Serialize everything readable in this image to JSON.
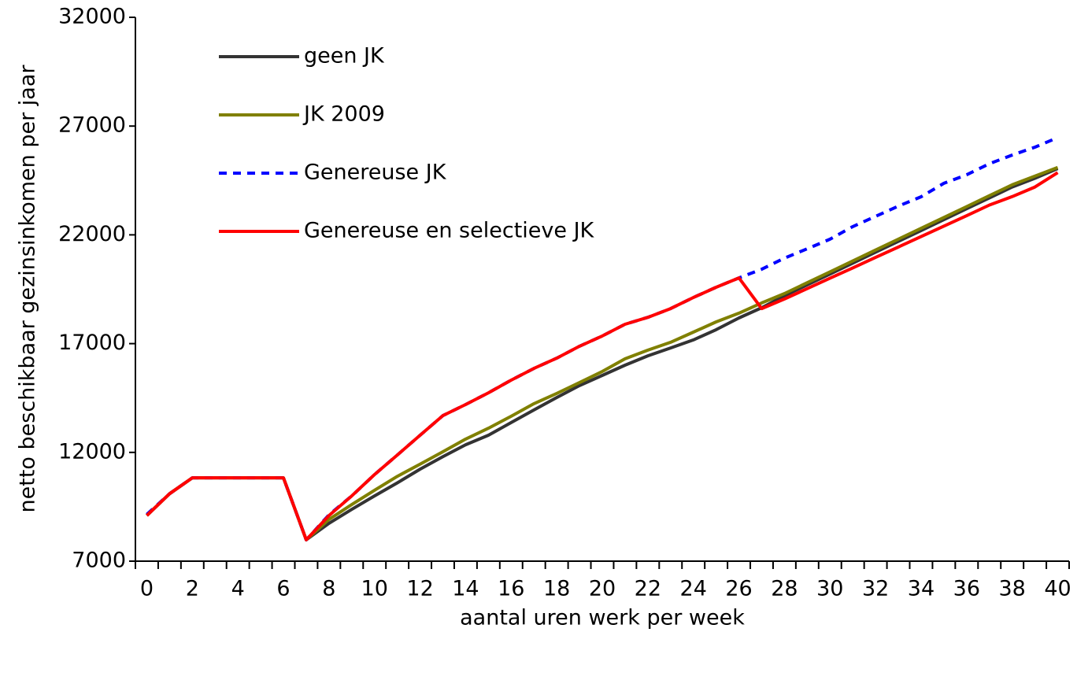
{
  "chart_data": {
    "type": "line",
    "x_label": "aantal uren werk per week",
    "y_label": "netto beschikbaar gezinsinkomen per jaar",
    "categories": [
      "0",
      null,
      "2",
      null,
      "4",
      null,
      "6",
      null,
      "8",
      null,
      "10",
      null,
      "12",
      null,
      "14",
      null,
      "16",
      null,
      "18",
      null,
      "20",
      null,
      "22",
      null,
      "24",
      null,
      "26",
      null,
      "28",
      null,
      "30",
      null,
      "32",
      null,
      "34",
      null,
      "36",
      null,
      "38",
      null,
      "40"
    ],
    "ylim": [
      7000,
      32000
    ],
    "yticks": [
      7000,
      12000,
      17000,
      22000,
      27000,
      32000
    ],
    "legend": "upper left",
    "series": [
      {
        "name": "geen JK",
        "color": "#333333",
        "dash": false,
        "values": [
          9100,
          10100,
          10830,
          10830,
          10830,
          10830,
          10830,
          7980,
          8740,
          9380,
          10000,
          10600,
          11230,
          11800,
          12350,
          12790,
          13370,
          13950,
          14520,
          15070,
          15540,
          16010,
          16440,
          16800,
          17170,
          17640,
          18180,
          18650,
          19200,
          19700,
          20200,
          20700,
          21200,
          21700,
          22200,
          22700,
          23200,
          23700,
          24200,
          24600,
          25050
        ]
      },
      {
        "name": "JK 2009",
        "color": "#808000",
        "dash": false,
        "values": [
          9100,
          10100,
          10830,
          10830,
          10830,
          10830,
          10830,
          7980,
          8920,
          9600,
          10260,
          10900,
          11460,
          12030,
          12610,
          13110,
          13660,
          14240,
          14710,
          15210,
          15720,
          16300,
          16700,
          17060,
          17530,
          18000,
          18400,
          18870,
          19300,
          19800,
          20300,
          20800,
          21300,
          21800,
          22300,
          22800,
          23300,
          23800,
          24300,
          24700,
          25100
        ]
      },
      {
        "name": "Genereuse JK",
        "color": "#0000ff",
        "dash": true,
        "values": [
          9150,
          10100,
          10830,
          10830,
          10830,
          10830,
          10830,
          7980,
          9130,
          10000,
          10980,
          11880,
          12790,
          13690,
          14200,
          14740,
          15320,
          15860,
          16330,
          16880,
          17350,
          17890,
          18210,
          18610,
          19120,
          19590,
          20020,
          20420,
          20930,
          21360,
          21800,
          22380,
          22850,
          23320,
          23750,
          24370,
          24760,
          25270,
          25670,
          26030,
          26470
        ]
      },
      {
        "name": "Genereuse en selectieve JK",
        "color": "#ff0000",
        "dash": false,
        "values": [
          9100,
          10100,
          10830,
          10830,
          10830,
          10830,
          10830,
          7980,
          9100,
          10000,
          10980,
          11880,
          12790,
          13690,
          14200,
          14740,
          15320,
          15860,
          16330,
          16880,
          17350,
          17890,
          18210,
          18610,
          19120,
          19590,
          20020,
          18610,
          19050,
          19530,
          20010,
          20480,
          20960,
          21440,
          21920,
          22400,
          22880,
          23370,
          23760,
          24200,
          24860
        ]
      }
    ]
  }
}
